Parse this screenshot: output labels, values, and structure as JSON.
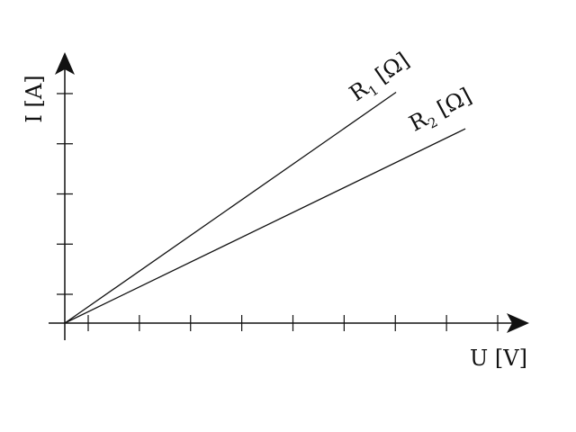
{
  "chart_data": {
    "type": "line",
    "xlabel": "U [V]",
    "ylabel": "I [A]",
    "grid": false,
    "legend": "none",
    "xlim": [
      0,
      1
    ],
    "ylim": [
      0,
      1
    ],
    "x_ticks_count": 9,
    "y_ticks_count": 5,
    "series": [
      {
        "name_main": "R",
        "name_sub": "1",
        "name_unit": " [Ω]",
        "x": [
          0,
          0.86
        ],
        "y": [
          0,
          1.01
        ]
      },
      {
        "name_main": "R",
        "name_sub": "2",
        "name_unit": " [Ω]",
        "x": [
          0,
          1.04
        ],
        "y": [
          0,
          0.85
        ]
      }
    ],
    "colors": {
      "axis": "#111111",
      "line": "#111111"
    }
  }
}
